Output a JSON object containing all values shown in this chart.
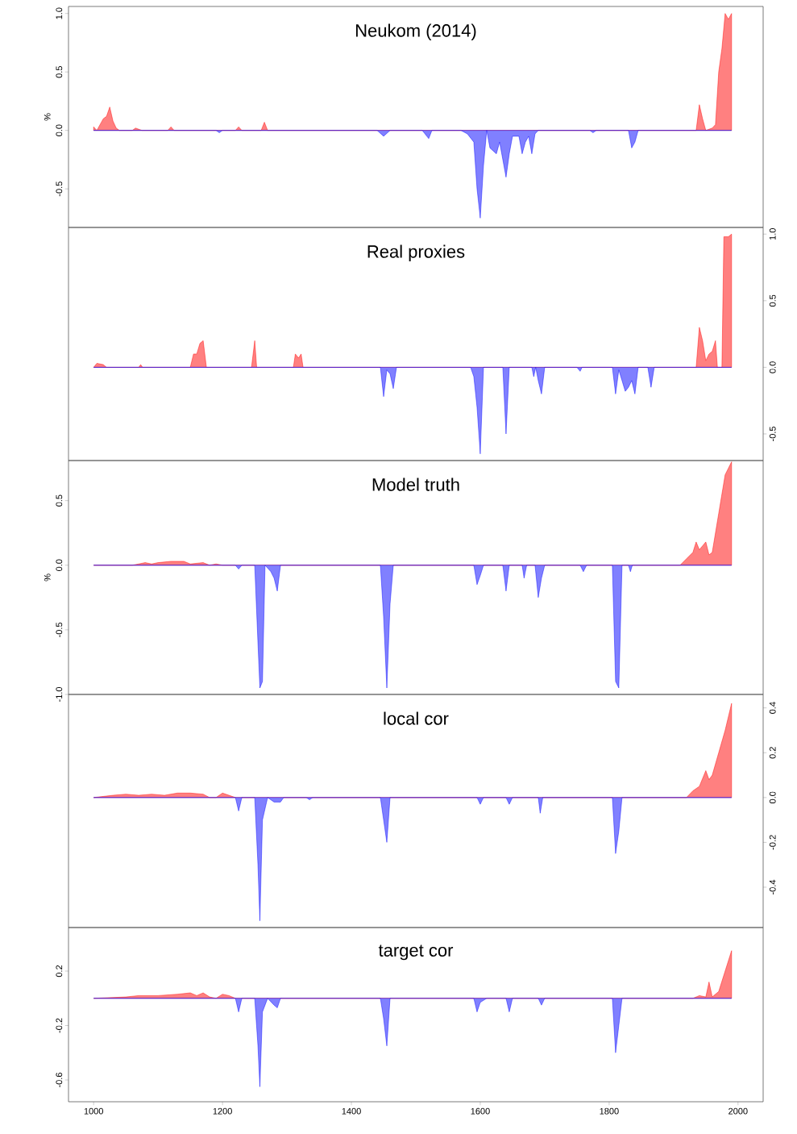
{
  "chart_data": [
    {
      "type": "area",
      "title": "Neukom (2014)",
      "ylabel": "%",
      "xlim": [
        961,
        2039
      ],
      "ylim": [
        -0.83,
        1.06
      ],
      "yticks": [
        {
          "value": -0.5,
          "label": "-0.5"
        },
        {
          "value": 0,
          "label": "0.0"
        },
        {
          "value": 0.5,
          "label": "0.5"
        },
        {
          "value": 1,
          "label": "1.0"
        }
      ],
      "tick_labels": "y",
      "series": [
        {
          "color": "#ff0000",
          "x": [
            1000,
            1005,
            1010,
            1015,
            1020,
            1025,
            1030,
            1035,
            1040,
            1060,
            1065,
            1075,
            1115,
            1120,
            1125,
            1220,
            1225,
            1230,
            1260,
            1265,
            1270,
            1935,
            1940,
            1945,
            1950,
            1960,
            1965,
            1970,
            1975,
            1980,
            1985,
            1990
          ],
          "values": [
            0.03,
            0,
            0.05,
            0.1,
            0.12,
            0.2,
            0.08,
            0.02,
            0,
            0,
            0.02,
            0,
            0,
            0.03,
            0,
            0,
            0.03,
            0,
            0,
            0.07,
            0,
            0,
            0.22,
            0.1,
            0,
            0.02,
            0.05,
            0.5,
            0.7,
            1.0,
            0.95,
            1.0
          ]
        },
        {
          "color": "#0000ff",
          "x": [
            1000,
            1190,
            1195,
            1200,
            1440,
            1450,
            1460,
            1510,
            1520,
            1525,
            1570,
            1580,
            1590,
            1595,
            1600,
            1605,
            1610,
            1615,
            1625,
            1630,
            1640,
            1645,
            1650,
            1660,
            1665,
            1670,
            1675,
            1680,
            1685,
            1690,
            1770,
            1775,
            1780,
            1830,
            1835,
            1840,
            1845,
            1990
          ],
          "values": [
            0,
            0,
            -0.02,
            0,
            0,
            -0.05,
            0,
            0,
            -0.07,
            0,
            0,
            -0.03,
            -0.1,
            -0.5,
            -0.75,
            -0.3,
            0,
            -0.15,
            -0.2,
            -0.1,
            -0.4,
            -0.2,
            -0.05,
            -0.05,
            -0.2,
            -0.1,
            -0.05,
            -0.2,
            -0.03,
            0,
            0,
            -0.02,
            0,
            0,
            -0.15,
            -0.1,
            0,
            0
          ]
        }
      ]
    },
    {
      "type": "area",
      "title": "Real proxies",
      "xlim": [
        961,
        2039
      ],
      "y2lim": [
        -0.7,
        1.05
      ],
      "y2ticks": [
        {
          "value": -0.5,
          "label": "-0.5"
        },
        {
          "value": 0,
          "label": "0.0"
        },
        {
          "value": 0.5,
          "label": "0.5"
        },
        {
          "value": 1,
          "label": "1.0"
        }
      ],
      "tick_labels": "y",
      "series": [
        {
          "color": "#ff0000",
          "axis": "y2",
          "x": [
            1000,
            1005,
            1015,
            1020,
            1070,
            1073,
            1076,
            1150,
            1155,
            1160,
            1165,
            1170,
            1175,
            1245,
            1250,
            1253,
            1310,
            1313,
            1318,
            1322,
            1325,
            1935,
            1940,
            1945,
            1950,
            1955,
            1960,
            1965,
            1968,
            1975,
            1978,
            1985,
            1990
          ],
          "values": [
            0,
            0.03,
            0.02,
            0,
            0,
            0.02,
            0,
            0,
            0.1,
            0.1,
            0.18,
            0.2,
            0,
            0,
            0.2,
            0,
            0,
            0.1,
            0.07,
            0.1,
            0,
            0,
            0.3,
            0.2,
            0.05,
            0.1,
            0.12,
            0.2,
            0,
            0,
            0.98,
            0.98,
            1.0
          ]
        },
        {
          "color": "#0000ff",
          "axis": "y2",
          "x": [
            1000,
            1445,
            1450,
            1455,
            1460,
            1465,
            1470,
            1585,
            1590,
            1595,
            1600,
            1605,
            1635,
            1640,
            1645,
            1680,
            1683,
            1686,
            1690,
            1695,
            1700,
            1750,
            1755,
            1758,
            1805,
            1810,
            1815,
            1820,
            1825,
            1830,
            1835,
            1840,
            1845,
            1860,
            1865,
            1870,
            1990
          ],
          "values": [
            0,
            0,
            -0.22,
            -0.02,
            -0.05,
            -0.16,
            0,
            0,
            -0.07,
            -0.3,
            -0.65,
            0,
            0,
            -0.5,
            0,
            0,
            -0.07,
            0,
            -0.1,
            -0.2,
            0,
            0,
            -0.03,
            0,
            0,
            -0.2,
            -0.02,
            -0.1,
            -0.18,
            -0.15,
            -0.1,
            -0.2,
            0,
            0,
            -0.15,
            0,
            0
          ]
        }
      ]
    },
    {
      "type": "area",
      "title": "Model truth",
      "ylabel": "%",
      "xlim": [
        961,
        2039
      ],
      "ylim": [
        -1.0,
        0.81
      ],
      "yticks": [
        {
          "value": -1,
          "label": "-1.0"
        },
        {
          "value": -0.5,
          "label": "-0.5"
        },
        {
          "value": 0,
          "label": "0.0"
        },
        {
          "value": 0.5,
          "label": "0.5"
        }
      ],
      "tick_labels": "y",
      "series": [
        {
          "color": "#ff0000",
          "x": [
            1000,
            1060,
            1070,
            1080,
            1090,
            1100,
            1120,
            1140,
            1150,
            1170,
            1180,
            1190,
            1200,
            1910,
            1920,
            1930,
            1935,
            1940,
            1945,
            1950,
            1955,
            1960,
            1970,
            1980,
            1990
          ],
          "values": [
            0,
            0,
            0.01,
            0.02,
            0.01,
            0.02,
            0.03,
            0.03,
            0.01,
            0.02,
            0,
            0.01,
            0,
            0,
            0.05,
            0.1,
            0.18,
            0.12,
            0.15,
            0.18,
            0.08,
            0.1,
            0.4,
            0.7,
            0.8
          ]
        },
        {
          "color": "#0000ff",
          "x": [
            1000,
            1220,
            1225,
            1230,
            1250,
            1255,
            1258,
            1262,
            1266,
            1275,
            1280,
            1285,
            1290,
            1445,
            1450,
            1455,
            1460,
            1465,
            1590,
            1595,
            1600,
            1605,
            1635,
            1640,
            1645,
            1665,
            1668,
            1672,
            1685,
            1690,
            1695,
            1700,
            1755,
            1760,
            1765,
            1805,
            1810,
            1815,
            1820,
            1830,
            1833,
            1836,
            1990
          ],
          "values": [
            0,
            0,
            -0.03,
            0,
            0,
            -0.6,
            -0.95,
            -0.9,
            0,
            -0.05,
            -0.1,
            -0.2,
            0,
            0,
            -0.4,
            -0.95,
            -0.3,
            0,
            0,
            -0.15,
            -0.08,
            0,
            0,
            -0.2,
            0,
            0,
            -0.1,
            0,
            0,
            -0.25,
            -0.1,
            0,
            0,
            -0.05,
            0,
            0,
            -0.9,
            -0.95,
            0,
            0,
            -0.05,
            0,
            0
          ]
        }
      ]
    },
    {
      "type": "area",
      "title": "local cor",
      "xlim": [
        961,
        2039
      ],
      "y2lim": [
        -0.58,
        0.46
      ],
      "y2ticks": [
        {
          "value": -0.4,
          "label": "-0.4"
        },
        {
          "value": -0.2,
          "label": "-0.2"
        },
        {
          "value": 0,
          "label": "0.0"
        },
        {
          "value": 0.2,
          "label": "0.2"
        },
        {
          "value": 0.4,
          "label": "0.4"
        }
      ],
      "tick_labels": "y",
      "series": [
        {
          "color": "#ff0000",
          "axis": "y2",
          "x": [
            1000,
            1030,
            1050,
            1070,
            1090,
            1110,
            1130,
            1150,
            1170,
            1180,
            1190,
            1200,
            1210,
            1220,
            1920,
            1930,
            1940,
            1950,
            1955,
            1960,
            1970,
            1980,
            1990
          ],
          "values": [
            0,
            0.01,
            0.015,
            0.01,
            0.015,
            0.01,
            0.02,
            0.02,
            0.015,
            0,
            0,
            0.02,
            0.01,
            0,
            0,
            0.03,
            0.05,
            0.12,
            0.08,
            0.1,
            0.2,
            0.3,
            0.42
          ]
        },
        {
          "color": "#0000ff",
          "axis": "y2",
          "x": [
            1000,
            1220,
            1225,
            1230,
            1250,
            1255,
            1258,
            1262,
            1270,
            1280,
            1290,
            1295,
            1330,
            1335,
            1340,
            1445,
            1450,
            1455,
            1460,
            1595,
            1600,
            1605,
            1640,
            1645,
            1650,
            1690,
            1693,
            1697,
            1805,
            1810,
            1815,
            1820,
            1990
          ],
          "values": [
            0,
            0,
            -0.06,
            0,
            0,
            -0.3,
            -0.55,
            -0.1,
            0,
            -0.02,
            -0.02,
            0,
            0,
            -0.01,
            0,
            0,
            -0.1,
            -0.2,
            0,
            0,
            -0.03,
            0,
            0,
            -0.03,
            0,
            0,
            -0.07,
            0,
            0,
            -0.25,
            -0.15,
            0,
            0
          ]
        }
      ]
    },
    {
      "type": "area",
      "title": "target cor",
      "xlim": [
        961,
        2039
      ],
      "ylim": [
        -0.76,
        0.52
      ],
      "xticks": [
        1000,
        1200,
        1400,
        1600,
        1800,
        2000
      ],
      "yticks": [
        {
          "value": -0.6,
          "label": "-0.6"
        },
        {
          "value": -0.2,
          "label": "-0.2"
        },
        {
          "value": 0.2,
          "label": "0.2"
        }
      ],
      "series": [
        {
          "color": "#ff0000",
          "x": [
            1000,
            1050,
            1070,
            1100,
            1130,
            1150,
            1160,
            1170,
            1180,
            1190,
            1200,
            1210,
            1220,
            1930,
            1940,
            1950,
            1955,
            1960,
            1970,
            1980,
            1990
          ],
          "values": [
            0,
            0.01,
            0.02,
            0.02,
            0.03,
            0.04,
            0.02,
            0.04,
            0.01,
            0,
            0.03,
            0.02,
            0,
            0,
            0.02,
            0.01,
            0.12,
            0.01,
            0.05,
            0.2,
            0.35
          ]
        },
        {
          "color": "#0000ff",
          "x": [
            1000,
            1220,
            1225,
            1230,
            1250,
            1255,
            1258,
            1262,
            1270,
            1280,
            1285,
            1290,
            1445,
            1450,
            1455,
            1460,
            1590,
            1595,
            1600,
            1610,
            1640,
            1645,
            1650,
            1690,
            1695,
            1700,
            1805,
            1810,
            1815,
            1820,
            1990
          ],
          "values": [
            0,
            0,
            -0.1,
            0,
            0,
            -0.35,
            -0.65,
            -0.1,
            0,
            -0.05,
            -0.07,
            0,
            0,
            -0.15,
            -0.35,
            0,
            0,
            -0.1,
            -0.03,
            0,
            0,
            -0.1,
            0,
            0,
            -0.05,
            0,
            0,
            -0.4,
            -0.2,
            0,
            0
          ]
        }
      ]
    }
  ]
}
